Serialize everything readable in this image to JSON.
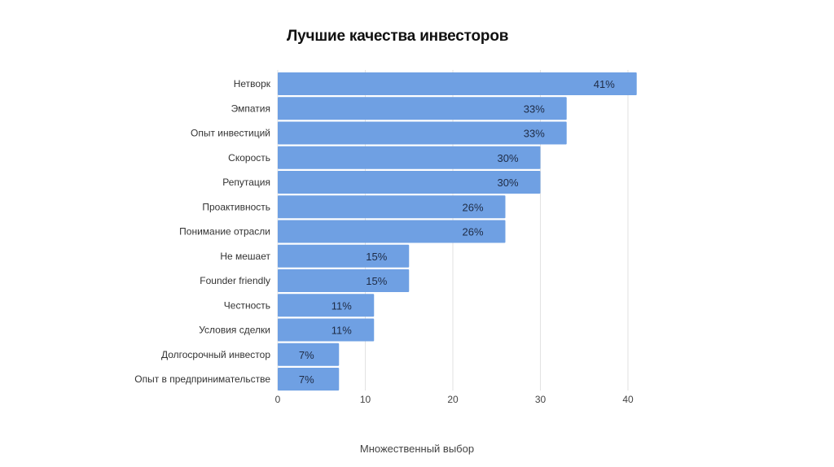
{
  "chart_data": {
    "type": "bar",
    "orientation": "horizontal",
    "title": "Лучшие качества инвесторов",
    "footer": "Множественный выбор",
    "categories": [
      "Нетворк",
      "Эмпатия",
      "Опыт инвестиций",
      "Скорость",
      "Репутация",
      "Проактивность",
      "Понимание отрасли",
      "Не мешает",
      "Founder friendly",
      "Честность",
      "Условия сделки",
      "Долгосрочный инвестор",
      "Опыт в предпринимательстве"
    ],
    "values": [
      41,
      33,
      33,
      30,
      30,
      26,
      26,
      15,
      15,
      11,
      11,
      7,
      7
    ],
    "data_labels": [
      "41%",
      "33%",
      "33%",
      "30%",
      "30%",
      "26%",
      "26%",
      "15%",
      "15%",
      "11%",
      "11%",
      "7%",
      "7%"
    ],
    "xlim": [
      0,
      40
    ],
    "xticks": [
      "0",
      "10",
      "20",
      "30",
      "40"
    ],
    "xtick_values": [
      0,
      10,
      20,
      30,
      40
    ],
    "grid": true,
    "bar_color": "#6fa0e3",
    "label_color": "#1e2b45"
  }
}
